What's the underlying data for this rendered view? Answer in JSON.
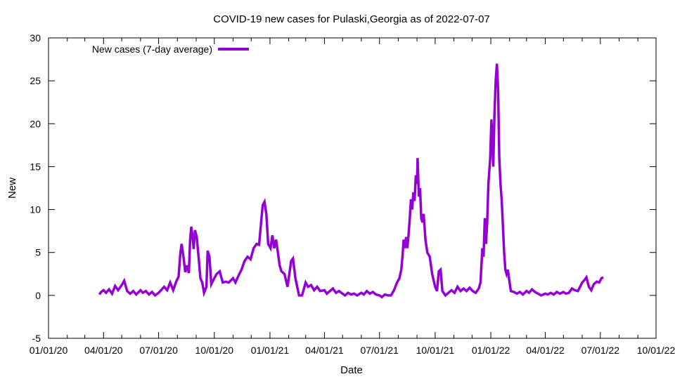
{
  "chart_data": {
    "type": "line",
    "title": "COVID-19 new cases for Pulaski,Georgia as of 2022-07-07",
    "xlabel": "Date",
    "ylabel": "New",
    "xlim": [
      "2020-01-01",
      "2022-10-01"
    ],
    "ylim": [
      -5,
      30
    ],
    "x_ticks": [
      "01/01/20",
      "04/01/20",
      "07/01/20",
      "10/01/20",
      "01/01/21",
      "04/01/21",
      "07/01/21",
      "10/01/21",
      "01/01/22",
      "04/01/22",
      "07/01/22",
      "10/01/22"
    ],
    "x_tick_dates": [
      "2020-01-01",
      "2020-04-01",
      "2020-07-01",
      "2020-10-01",
      "2021-01-01",
      "2021-04-01",
      "2021-07-01",
      "2021-10-01",
      "2022-01-01",
      "2022-04-01",
      "2022-07-01",
      "2022-10-01"
    ],
    "y_ticks": [
      -5,
      0,
      5,
      10,
      15,
      20,
      25,
      30
    ],
    "grid": false,
    "legend": "top-left",
    "series": [
      {
        "name": "New cases (7-day average)",
        "color": "#9400d3",
        "points": [
          [
            "2020-03-25",
            0.1
          ],
          [
            "2020-03-28",
            0.4
          ],
          [
            "2020-04-01",
            0.6
          ],
          [
            "2020-04-05",
            0.3
          ],
          [
            "2020-04-10",
            0.7
          ],
          [
            "2020-04-15",
            0.2
          ],
          [
            "2020-04-20",
            1.1
          ],
          [
            "2020-04-25",
            0.6
          ],
          [
            "2020-05-01",
            1.2
          ],
          [
            "2020-05-05",
            1.7
          ],
          [
            "2020-05-10",
            0.5
          ],
          [
            "2020-05-15",
            0.2
          ],
          [
            "2020-05-20",
            0.5
          ],
          [
            "2020-05-25",
            0.1
          ],
          [
            "2020-06-01",
            0.6
          ],
          [
            "2020-06-05",
            0.3
          ],
          [
            "2020-06-10",
            0.5
          ],
          [
            "2020-06-15",
            0.1
          ],
          [
            "2020-06-20",
            0.4
          ],
          [
            "2020-06-25",
            0.0
          ],
          [
            "2020-07-01",
            0.3
          ],
          [
            "2020-07-05",
            0.6
          ],
          [
            "2020-07-10",
            1.0
          ],
          [
            "2020-07-15",
            0.6
          ],
          [
            "2020-07-20",
            1.5
          ],
          [
            "2020-07-25",
            0.6
          ],
          [
            "2020-07-30",
            1.6
          ],
          [
            "2020-08-03",
            2.2
          ],
          [
            "2020-08-06",
            5.0
          ],
          [
            "2020-08-08",
            6.0
          ],
          [
            "2020-08-11",
            4.5
          ],
          [
            "2020-08-14",
            2.7
          ],
          [
            "2020-08-17",
            3.5
          ],
          [
            "2020-08-20",
            2.6
          ],
          [
            "2020-08-22",
            6.5
          ],
          [
            "2020-08-24",
            8.0
          ],
          [
            "2020-08-26",
            6.8
          ],
          [
            "2020-08-28",
            5.4
          ],
          [
            "2020-08-30",
            7.6
          ],
          [
            "2020-09-02",
            6.8
          ],
          [
            "2020-09-05",
            4.5
          ],
          [
            "2020-09-08",
            2.0
          ],
          [
            "2020-09-11",
            1.5
          ],
          [
            "2020-09-14",
            0.3
          ],
          [
            "2020-09-18",
            1.0
          ],
          [
            "2020-09-20",
            5.2
          ],
          [
            "2020-09-23",
            4.5
          ],
          [
            "2020-09-26",
            1.3
          ],
          [
            "2020-10-01",
            2.0
          ],
          [
            "2020-10-05",
            2.5
          ],
          [
            "2020-10-10",
            2.8
          ],
          [
            "2020-10-15",
            1.5
          ],
          [
            "2020-10-20",
            1.6
          ],
          [
            "2020-10-25",
            1.5
          ],
          [
            "2020-11-01",
            2.0
          ],
          [
            "2020-11-05",
            1.5
          ],
          [
            "2020-11-10",
            2.3
          ],
          [
            "2020-11-15",
            3.0
          ],
          [
            "2020-11-20",
            4.0
          ],
          [
            "2020-11-25",
            4.5
          ],
          [
            "2020-11-30",
            4.2
          ],
          [
            "2020-12-05",
            5.5
          ],
          [
            "2020-12-10",
            6.0
          ],
          [
            "2020-12-14",
            5.9
          ],
          [
            "2020-12-18",
            9.0
          ],
          [
            "2020-12-20",
            10.5
          ],
          [
            "2020-12-23",
            10.9
          ],
          [
            "2020-12-26",
            9.5
          ],
          [
            "2020-12-29",
            6.0
          ],
          [
            "2021-01-02",
            5.5
          ],
          [
            "2021-01-05",
            7.0
          ],
          [
            "2021-01-08",
            5.5
          ],
          [
            "2021-01-11",
            6.5
          ],
          [
            "2021-01-14",
            5.0
          ],
          [
            "2021-01-17",
            3.5
          ],
          [
            "2021-01-20",
            2.8
          ],
          [
            "2021-01-25",
            2.5
          ],
          [
            "2021-01-30",
            1.0
          ],
          [
            "2021-02-05",
            4.0
          ],
          [
            "2021-02-08",
            4.3
          ],
          [
            "2021-02-12",
            2.0
          ],
          [
            "2021-02-18",
            0.0
          ],
          [
            "2021-02-23",
            0.0
          ],
          [
            "2021-03-01",
            1.5
          ],
          [
            "2021-03-05",
            1.0
          ],
          [
            "2021-03-10",
            1.2
          ],
          [
            "2021-03-15",
            0.6
          ],
          [
            "2021-03-20",
            1.0
          ],
          [
            "2021-03-25",
            0.5
          ],
          [
            "2021-04-01",
            0.6
          ],
          [
            "2021-04-05",
            0.2
          ],
          [
            "2021-04-10",
            0.5
          ],
          [
            "2021-04-15",
            0.8
          ],
          [
            "2021-04-20",
            0.3
          ],
          [
            "2021-04-25",
            0.5
          ],
          [
            "2021-05-01",
            0.2
          ],
          [
            "2021-05-05",
            0.0
          ],
          [
            "2021-05-10",
            0.3
          ],
          [
            "2021-05-15",
            0.1
          ],
          [
            "2021-05-20",
            0.2
          ],
          [
            "2021-05-25",
            0.0
          ],
          [
            "2021-06-01",
            0.3
          ],
          [
            "2021-06-05",
            0.1
          ],
          [
            "2021-06-10",
            0.5
          ],
          [
            "2021-06-15",
            0.2
          ],
          [
            "2021-06-20",
            0.4
          ],
          [
            "2021-06-25",
            0.1
          ],
          [
            "2021-07-01",
            0.0
          ],
          [
            "2021-07-05",
            -0.2
          ],
          [
            "2021-07-10",
            0.1
          ],
          [
            "2021-07-15",
            0.0
          ],
          [
            "2021-07-20",
            0.0
          ],
          [
            "2021-07-25",
            0.6
          ],
          [
            "2021-07-30",
            1.5
          ],
          [
            "2021-08-03",
            2.0
          ],
          [
            "2021-08-06",
            3.0
          ],
          [
            "2021-08-08",
            4.5
          ],
          [
            "2021-08-10",
            6.5
          ],
          [
            "2021-08-12",
            5.5
          ],
          [
            "2021-08-14",
            6.8
          ],
          [
            "2021-08-16",
            5.5
          ],
          [
            "2021-08-18",
            7.0
          ],
          [
            "2021-08-20",
            9.0
          ],
          [
            "2021-08-22",
            11.2
          ],
          [
            "2021-08-24",
            10.0
          ],
          [
            "2021-08-26",
            12.0
          ],
          [
            "2021-08-28",
            11.0
          ],
          [
            "2021-08-30",
            14.0
          ],
          [
            "2021-09-01",
            13.0
          ],
          [
            "2021-09-02",
            16.0
          ],
          [
            "2021-09-04",
            11.5
          ],
          [
            "2021-09-06",
            12.5
          ],
          [
            "2021-09-08",
            9.0
          ],
          [
            "2021-09-10",
            8.5
          ],
          [
            "2021-09-12",
            9.5
          ],
          [
            "2021-09-15",
            6.5
          ],
          [
            "2021-09-18",
            5.0
          ],
          [
            "2021-09-22",
            4.5
          ],
          [
            "2021-09-26",
            2.5
          ],
          [
            "2021-10-01",
            1.0
          ],
          [
            "2021-10-04",
            0.5
          ],
          [
            "2021-10-07",
            2.8
          ],
          [
            "2021-10-10",
            3.0
          ],
          [
            "2021-10-13",
            0.5
          ],
          [
            "2021-10-18",
            0.0
          ],
          [
            "2021-10-23",
            0.3
          ],
          [
            "2021-10-28",
            0.6
          ],
          [
            "2021-11-02",
            0.3
          ],
          [
            "2021-11-07",
            1.0
          ],
          [
            "2021-11-12",
            0.5
          ],
          [
            "2021-11-17",
            0.8
          ],
          [
            "2021-11-22",
            0.5
          ],
          [
            "2021-11-27",
            0.9
          ],
          [
            "2021-12-02",
            0.5
          ],
          [
            "2021-12-07",
            0.3
          ],
          [
            "2021-12-12",
            0.8
          ],
          [
            "2021-12-15",
            1.5
          ],
          [
            "2021-12-18",
            5.5
          ],
          [
            "2021-12-20",
            4.5
          ],
          [
            "2021-12-22",
            9.0
          ],
          [
            "2021-12-24",
            6.0
          ],
          [
            "2021-12-26",
            8.5
          ],
          [
            "2021-12-28",
            13.0
          ],
          [
            "2021-12-31",
            16.0
          ],
          [
            "2022-01-02",
            20.5
          ],
          [
            "2022-01-04",
            17.0
          ],
          [
            "2022-01-05",
            15.0
          ],
          [
            "2022-01-07",
            21.0
          ],
          [
            "2022-01-09",
            25.0
          ],
          [
            "2022-01-11",
            27.0
          ],
          [
            "2022-01-13",
            24.0
          ],
          [
            "2022-01-15",
            16.0
          ],
          [
            "2022-01-17",
            13.0
          ],
          [
            "2022-01-19",
            11.0
          ],
          [
            "2022-01-21",
            8.0
          ],
          [
            "2022-01-23",
            5.0
          ],
          [
            "2022-01-25",
            3.0
          ],
          [
            "2022-01-27",
            2.5
          ],
          [
            "2022-01-29",
            3.0
          ],
          [
            "2022-01-31",
            2.0
          ],
          [
            "2022-02-03",
            0.5
          ],
          [
            "2022-02-08",
            0.4
          ],
          [
            "2022-02-13",
            0.2
          ],
          [
            "2022-02-18",
            0.4
          ],
          [
            "2022-02-23",
            0.1
          ],
          [
            "2022-03-01",
            0.5
          ],
          [
            "2022-03-05",
            0.3
          ],
          [
            "2022-03-10",
            0.7
          ],
          [
            "2022-03-15",
            0.4
          ],
          [
            "2022-03-20",
            0.2
          ],
          [
            "2022-03-25",
            0.0
          ],
          [
            "2022-04-01",
            0.2
          ],
          [
            "2022-04-05",
            0.1
          ],
          [
            "2022-04-10",
            0.3
          ],
          [
            "2022-04-15",
            0.1
          ],
          [
            "2022-04-20",
            0.4
          ],
          [
            "2022-04-25",
            0.2
          ],
          [
            "2022-05-01",
            0.4
          ],
          [
            "2022-05-05",
            0.2
          ],
          [
            "2022-05-10",
            0.3
          ],
          [
            "2022-05-15",
            0.8
          ],
          [
            "2022-05-20",
            0.6
          ],
          [
            "2022-05-25",
            0.5
          ],
          [
            "2022-06-01",
            1.5
          ],
          [
            "2022-06-05",
            1.8
          ],
          [
            "2022-06-08",
            2.1
          ],
          [
            "2022-06-12",
            1.0
          ],
          [
            "2022-06-16",
            0.6
          ],
          [
            "2022-06-20",
            1.3
          ],
          [
            "2022-06-25",
            1.6
          ],
          [
            "2022-06-29",
            1.5
          ],
          [
            "2022-07-03",
            2.0
          ],
          [
            "2022-07-06",
            2.1
          ]
        ]
      }
    ]
  }
}
